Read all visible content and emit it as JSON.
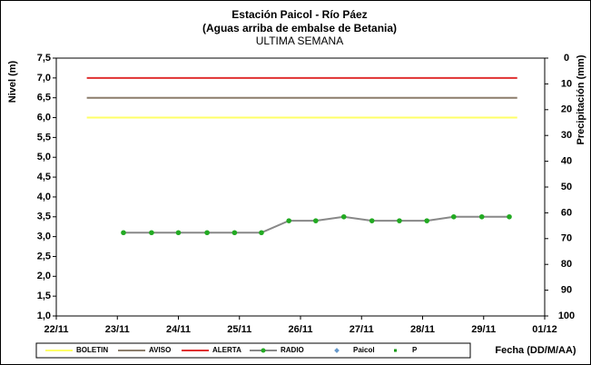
{
  "chart_data": {
    "type": "line",
    "title": "Estación Paicol  - Río Páez",
    "subtitle": "(Aguas arriba de embalse de Betania)",
    "subtitle2": "ULTIMA SEMANA",
    "ylabel": "Nivel (m)",
    "y2label": "Precipitación (mm)",
    "xlabel": "Fecha (DD/M/AA)",
    "xlim": [
      0,
      8
    ],
    "xticks": [
      {
        "value": 0,
        "label": "22/11"
      },
      {
        "value": 1,
        "label": "23/11"
      },
      {
        "value": 2,
        "label": "24/11"
      },
      {
        "value": 3,
        "label": "25/11"
      },
      {
        "value": 4,
        "label": "26/11"
      },
      {
        "value": 5,
        "label": "27/11"
      },
      {
        "value": 6,
        "label": "28/11"
      },
      {
        "value": 7,
        "label": "29/11"
      },
      {
        "value": 8,
        "label": "01/12"
      }
    ],
    "ylim": [
      1.0,
      7.5
    ],
    "yticks": [
      {
        "value": 1.0,
        "label": "1,0"
      },
      {
        "value": 1.5,
        "label": "1,5"
      },
      {
        "value": 2.0,
        "label": "2,0"
      },
      {
        "value": 2.5,
        "label": "2,5"
      },
      {
        "value": 3.0,
        "label": "3,0"
      },
      {
        "value": 3.5,
        "label": "3,5"
      },
      {
        "value": 4.0,
        "label": "4,0"
      },
      {
        "value": 4.5,
        "label": "4,5"
      },
      {
        "value": 5.0,
        "label": "5,0"
      },
      {
        "value": 5.5,
        "label": "5,5"
      },
      {
        "value": 6.0,
        "label": "6,0"
      },
      {
        "value": 6.5,
        "label": "6,5"
      },
      {
        "value": 7.0,
        "label": "7,0"
      },
      {
        "value": 7.5,
        "label": "7,5"
      }
    ],
    "y2lim": [
      0,
      100
    ],
    "y2_inverted": true,
    "y2ticks": [
      0,
      10,
      20,
      30,
      40,
      50,
      60,
      70,
      80,
      90,
      100
    ],
    "series": [
      {
        "name": "BOLETIN",
        "color": "#ffff66",
        "x": [
          0.5,
          7.55
        ],
        "values": [
          6.0,
          6.0
        ]
      },
      {
        "name": "AVISO",
        "color": "#8b7d6b",
        "x": [
          0.5,
          7.55
        ],
        "values": [
          6.5,
          6.5
        ]
      },
      {
        "name": "ALERTA",
        "color": "#e03030",
        "x": [
          0.5,
          7.55
        ],
        "values": [
          7.0,
          7.0
        ]
      },
      {
        "name": "RADIO",
        "color": "#22aa22",
        "line_color": "#888888",
        "x": [
          1.1,
          1.56,
          2.0,
          2.47,
          2.92,
          3.36,
          3.81,
          4.25,
          4.71,
          5.17,
          5.62,
          6.07,
          6.51,
          6.97,
          7.42
        ],
        "values": [
          3.1,
          3.1,
          3.1,
          3.1,
          3.1,
          3.1,
          3.4,
          3.4,
          3.5,
          3.4,
          3.4,
          3.4,
          3.5,
          3.5,
          3.5
        ],
        "markers": true
      },
      {
        "name": "Paicol",
        "color": "#6699cc",
        "x": [],
        "values": []
      },
      {
        "name": "P",
        "color": "#119911",
        "x": [],
        "values": []
      }
    ]
  }
}
